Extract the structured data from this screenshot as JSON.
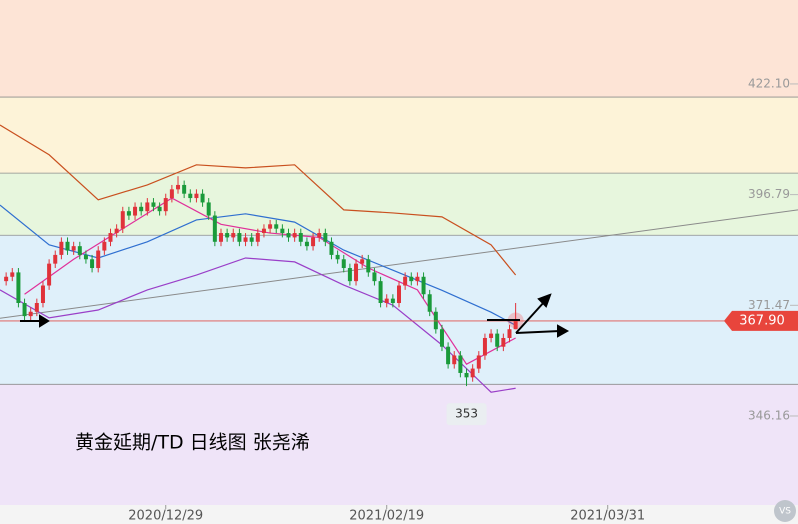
{
  "chart_data": {
    "type": "candlestick",
    "title": "黄金延期/TD  日线图 张尧浠",
    "watermark": "VS",
    "x": [
      1,
      2,
      3,
      4,
      5,
      6,
      7,
      8,
      9,
      10,
      11,
      12,
      13,
      14,
      15,
      16,
      17,
      18,
      19,
      20,
      21,
      22,
      23,
      24,
      25,
      26,
      27,
      28,
      29,
      30,
      31,
      32,
      33,
      34,
      35,
      36,
      37,
      38,
      39,
      40,
      41,
      42,
      43,
      44,
      45,
      46,
      47,
      48,
      49,
      50,
      51,
      52,
      53,
      54,
      55,
      56,
      57,
      58,
      59,
      60,
      61,
      62,
      63,
      64,
      65,
      66,
      67,
      68,
      69,
      70,
      71,
      72,
      73,
      74,
      75,
      76,
      77,
      78,
      79,
      80,
      81,
      82,
      83,
      84
    ],
    "open": [
      377,
      378,
      379,
      372,
      369,
      370,
      372,
      376,
      381,
      383,
      386,
      384,
      385,
      383,
      382,
      380,
      384,
      386,
      388,
      389,
      393,
      392,
      394,
      393,
      395,
      394,
      393,
      396,
      398,
      399,
      397,
      396,
      397,
      395,
      392,
      386,
      388,
      387,
      388,
      386,
      387,
      386,
      388,
      389,
      390,
      389,
      388,
      387,
      388,
      386,
      385,
      387,
      388,
      386,
      383,
      382,
      380,
      377,
      381,
      382,
      379,
      377,
      372,
      373,
      372,
      376,
      378,
      377,
      378,
      374,
      370,
      366,
      362,
      358,
      360,
      356,
      355,
      357,
      360,
      364,
      365,
      362,
      364,
      366
    ],
    "high": [
      379,
      380,
      380,
      373,
      371,
      373,
      377,
      382,
      384,
      387,
      387,
      386,
      386,
      384,
      383,
      385,
      387,
      389,
      390,
      394,
      394,
      395,
      395,
      396,
      396,
      395,
      397,
      399,
      401,
      400,
      398,
      398,
      398,
      396,
      393,
      389,
      389,
      389,
      389,
      388,
      388,
      389,
      390,
      391,
      391,
      390,
      389,
      389,
      389,
      387,
      388,
      389,
      389,
      387,
      384,
      383,
      381,
      382,
      383,
      383,
      380,
      378,
      374,
      374,
      377,
      379,
      379,
      379,
      379,
      375,
      371,
      367,
      363,
      361,
      361,
      357,
      358,
      361,
      365,
      366,
      366,
      365,
      367,
      372
    ],
    "low": [
      376,
      377,
      371,
      368,
      368,
      369,
      371,
      375,
      380,
      382,
      383,
      383,
      382,
      381,
      379,
      379,
      383,
      385,
      387,
      388,
      391,
      391,
      392,
      392,
      393,
      392,
      392,
      395,
      397,
      396,
      395,
      395,
      394,
      391,
      385,
      385,
      386,
      386,
      385,
      385,
      385,
      385,
      387,
      388,
      388,
      387,
      386,
      386,
      385,
      384,
      384,
      386,
      385,
      382,
      381,
      379,
      376,
      376,
      380,
      378,
      376,
      371,
      371,
      371,
      371,
      375,
      376,
      376,
      373,
      369,
      365,
      361,
      357,
      357,
      355,
      353,
      354,
      356,
      359,
      363,
      361,
      361,
      363,
      366
    ],
    "close": [
      378,
      379,
      372,
      369,
      370,
      372,
      376,
      381,
      383,
      386,
      384,
      385,
      383,
      382,
      380,
      384,
      386,
      388,
      389,
      393,
      392,
      394,
      393,
      395,
      394,
      393,
      396,
      398,
      399,
      397,
      396,
      397,
      395,
      392,
      386,
      388,
      387,
      388,
      386,
      387,
      386,
      388,
      389,
      390,
      389,
      388,
      387,
      388,
      386,
      385,
      387,
      388,
      386,
      383,
      382,
      380,
      377,
      381,
      382,
      379,
      377,
      372,
      373,
      372,
      376,
      378,
      377,
      378,
      374,
      370,
      366,
      362,
      358,
      360,
      356,
      355,
      357,
      360,
      364,
      365,
      362,
      364,
      366,
      368
    ],
    "up_color": "#e0323a",
    "down_color": "#1a9a3a",
    "lines": [
      {
        "color": "#c9501f",
        "x": [
          0,
          8,
          16,
          24,
          32,
          40,
          48,
          56,
          64,
          72,
          80,
          84
        ],
        "values": [
          412.7,
          405.9,
          395.6,
          399.0,
          403.6,
          402.9,
          403.6,
          393.3,
          392.6,
          391.7,
          385.3,
          378.4
        ]
      },
      {
        "color": "#2f6fd0",
        "x": [
          0,
          8,
          16,
          24,
          32,
          40,
          48,
          56,
          64,
          72,
          80,
          84
        ],
        "values": [
          394.4,
          385.3,
          382.3,
          386.0,
          391.0,
          392.4,
          390.5,
          384.1,
          379.5,
          374.9,
          369.9,
          366.9
        ]
      },
      {
        "color": "#9a3fc8",
        "x": [
          0,
          8,
          16,
          24,
          32,
          40,
          48,
          56,
          64,
          72,
          80,
          84
        ],
        "values": [
          375.0,
          368.6,
          370.4,
          375.0,
          378.4,
          382.3,
          381.4,
          376.1,
          371.5,
          362.4,
          351.6,
          352.5
        ]
      },
      {
        "color": "#e0309a",
        "x": [
          4,
          12,
          20,
          28,
          36,
          44,
          52,
          60,
          68,
          76,
          84
        ],
        "values": [
          374,
          382,
          389,
          396,
          390,
          388,
          387,
          380,
          375,
          358,
          364
        ]
      }
    ],
    "trend_line": {
      "color": "#8a8a8a",
      "x": [
        0,
        130
      ],
      "values": [
        368.5,
        393.3
      ]
    },
    "levels": [
      419.1,
      401.7,
      387.5,
      353.4
    ],
    "band_colors": [
      "#fde4d6",
      "#fdf3d8",
      "#e7f6dd",
      "#dff0fa",
      "#efe4f8"
    ],
    "current_price": {
      "value": 367.9,
      "label": "367.90"
    },
    "low_annotation": {
      "x": 76,
      "value": 353
    },
    "xlim": [
      0,
      130
    ],
    "ylim": [
      325.8,
      441.3
    ],
    "yticks": [
      {
        "value": 422.1,
        "label": "422.10"
      },
      396.79,
      371.47,
      346.16
    ],
    "xticks": [
      {
        "value": 27,
        "label": "2020/12/29"
      },
      {
        "value": 63,
        "label": "2021/02/19"
      },
      {
        "value": 99,
        "label": "2021/03/31"
      }
    ]
  }
}
